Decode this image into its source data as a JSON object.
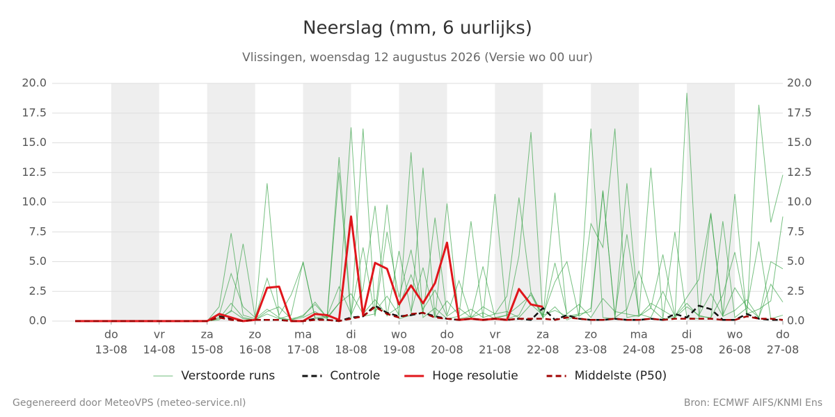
{
  "chart_data": {
    "type": "line",
    "title": "Neerslag (mm, 6 uurlijks)",
    "subtitle": "Vlissingen, woensdag 12 augustus 2026 (Versie wo 00 uur)",
    "footer_left": "Gegenereerd door MeteoVPS (meteo-service.nl)",
    "footer_right": "Bron: ECMWF AIFS/KNMI Ens",
    "x": [
      12.25,
      12.5,
      12.75,
      13,
      13.25,
      13.5,
      13.75,
      14,
      14.25,
      14.5,
      14.75,
      15,
      15.25,
      15.5,
      15.75,
      16,
      16.25,
      16.5,
      16.75,
      17,
      17.25,
      17.5,
      17.75,
      18,
      18.25,
      18.5,
      18.75,
      19,
      19.25,
      19.5,
      19.75,
      20,
      20.25,
      20.5,
      20.75,
      21,
      21.25,
      21.5,
      21.75,
      22,
      22.25,
      22.5,
      22.75,
      23,
      23.25,
      23.5,
      23.75,
      24,
      24.25,
      24.5,
      24.75,
      25,
      25.25,
      25.5,
      25.75,
      26,
      26.25,
      26.5,
      26.75,
      27
    ],
    "xlim": [
      11.77,
      27
    ],
    "xticks": [
      {
        "value": 13,
        "label": "13-08"
      },
      {
        "value": 14,
        "label": "14-08"
      },
      {
        "value": 15,
        "label": "15-08"
      },
      {
        "value": 16,
        "label": "16-08"
      },
      {
        "value": 17,
        "label": "17-08"
      },
      {
        "value": 18,
        "label": "18-08"
      },
      {
        "value": 19,
        "label": "19-08"
      },
      {
        "value": 20,
        "label": "20-08"
      },
      {
        "value": 21,
        "label": "21-08"
      },
      {
        "value": 22,
        "label": "22-08"
      },
      {
        "value": 23,
        "label": "23-08"
      },
      {
        "value": 24,
        "label": "24-08"
      },
      {
        "value": 25,
        "label": "25-08"
      },
      {
        "value": 26,
        "label": "26-08"
      },
      {
        "value": 27,
        "label": "27-08"
      }
    ],
    "xtick_weekdays": [
      "do",
      "vr",
      "za",
      "zo",
      "ma",
      "di",
      "wo",
      "do",
      "vr",
      "za",
      "zo",
      "ma",
      "di",
      "wo",
      "do"
    ],
    "ylim": [
      0,
      20
    ],
    "yticks": [
      {
        "value": 0,
        "label": "0.0"
      },
      {
        "value": 2.5,
        "label": "2.5"
      },
      {
        "value": 5,
        "label": "5.0"
      },
      {
        "value": 7.5,
        "label": "7.5"
      },
      {
        "value": 10,
        "label": "10.0"
      },
      {
        "value": 12.5,
        "label": "12.5"
      },
      {
        "value": 15,
        "label": "15.0"
      },
      {
        "value": 17.5,
        "label": "17.5"
      },
      {
        "value": 20,
        "label": "20.0"
      }
    ],
    "grid": true,
    "series": [
      {
        "name": "Verstoorde runs",
        "color": "#2e9e3e",
        "members": [
          [
            0,
            0,
            0,
            0,
            0,
            0,
            0,
            0,
            0,
            0,
            0,
            0,
            1.2,
            7.4,
            0.5,
            0.2,
            1.0,
            0.3,
            0.1,
            0.5,
            1.4,
            0.3,
            12.5,
            0.2,
            16.2,
            0.8,
            2.1,
            0.5,
            14.2,
            0.3,
            1.1,
            0.2,
            0.4,
            1.0,
            0.3,
            10.7,
            0.2,
            0.5,
            2.4,
            0.3,
            1.2,
            0.1,
            0.5,
            16.2,
            0.3,
            0.2,
            11.6,
            0.4,
            1.1,
            0.2,
            0.3,
            19.2,
            0.5,
            0.2,
            8.4,
            0.3,
            1.1,
            6.7,
            0.2,
            0.5
          ],
          [
            0,
            0,
            0,
            0,
            0,
            0,
            0,
            0,
            0,
            0,
            0,
            0,
            0.3,
            0.8,
            6.5,
            0.3,
            11.6,
            0.2,
            0.5,
            5.0,
            0.2,
            0.3,
            1.5,
            16.3,
            0.4,
            0.6,
            9.8,
            0.2,
            0.5,
            12.9,
            0.3,
            9.9,
            0.2,
            0.4,
            4.6,
            0.3,
            0.5,
            5.5,
            15.9,
            0.2,
            10.8,
            0.3,
            0.5,
            8.2,
            6.2,
            16.2,
            0.3,
            0.5,
            12.9,
            0.2,
            7.5,
            0.3,
            0.2,
            9.0,
            0.4,
            10.7,
            0.3,
            18.2,
            8.3,
            12.3
          ],
          [
            0,
            0,
            0,
            0,
            0,
            0,
            0,
            0,
            0,
            0,
            0,
            0,
            0.5,
            4.0,
            1.2,
            0.3,
            3.6,
            0.5,
            2.2,
            4.9,
            0.3,
            0.4,
            2.9,
            0.6,
            6.2,
            0.4,
            7.5,
            2.0,
            6.0,
            0.6,
            8.7,
            0.5,
            3.4,
            0.3,
            1.2,
            0.6,
            2.1,
            10.4,
            2.4,
            0.5,
            3.3,
            5.0,
            0.4,
            1.1,
            11.0,
            0.3,
            1.0,
            4.2,
            1.1,
            5.6,
            0.4,
            2.0,
            3.5,
            9.1,
            0.5,
            2.8,
            1.2,
            0.3,
            5.0,
            4.4
          ],
          [
            0,
            0,
            0,
            0,
            0,
            0,
            0,
            0,
            0,
            0,
            0,
            0,
            0.2,
            1.5,
            0.3,
            0.1,
            0.8,
            1.2,
            0.2,
            0.4,
            1.6,
            0.3,
            13.8,
            0.5,
            2.7,
            9.7,
            0.4,
            5.9,
            0.8,
            4.5,
            0.3,
            1.7,
            0.5,
            8.4,
            0.3,
            0.6,
            0.8,
            0.3,
            1.4,
            0.5,
            0.9,
            0.4,
            0.6,
            0.8,
            10.9,
            0.5,
            7.3,
            0.6,
            0.3,
            2.5,
            0.4,
            1.5,
            0.4,
            0.3,
            2.2,
            5.8,
            0.6,
            1.0,
            1.7,
            8.8
          ],
          [
            0,
            0,
            0,
            0,
            0,
            0,
            0,
            0,
            0,
            0,
            0,
            0,
            0.1,
            0.9,
            0.2,
            0.1,
            0.6,
            0.2,
            0.1,
            0.3,
            0.8,
            0.2,
            1.5,
            2.3,
            0.6,
            1.8,
            0.5,
            1.2,
            3.9,
            1.0,
            2.6,
            0.4,
            1.1,
            0.3,
            0.7,
            0.2,
            0.5,
            1.3,
            2.2,
            0.3,
            4.9,
            0.6,
            1.4,
            0.3,
            1.9,
            0.8,
            0.6,
            0.4,
            1.5,
            0.9,
            0.3,
            1.2,
            0.5,
            2.3,
            0.4,
            0.9,
            1.8,
            0.3,
            3.1,
            1.6
          ]
        ]
      },
      {
        "name": "Controle",
        "color": "#111111",
        "dashed": true,
        "values": [
          0,
          0,
          0,
          0,
          0,
          0,
          0,
          0,
          0,
          0,
          0,
          0,
          0.4,
          0.2,
          0,
          0.1,
          0.1,
          0.1,
          0,
          0,
          0.2,
          0.1,
          0,
          0.3,
          0.4,
          1.3,
          0.7,
          0.4,
          0.5,
          0.7,
          0.4,
          0.2,
          0.1,
          0.2,
          0.1,
          0.2,
          0.1,
          0.2,
          0.1,
          1.1,
          0.1,
          0.5,
          0.2,
          0.1,
          0.1,
          0.2,
          0.1,
          0.1,
          0.2,
          0.1,
          0.6,
          0.3,
          1.3,
          1.0,
          0.1,
          0.1,
          0.6,
          0.2,
          0.1,
          0.1
        ]
      },
      {
        "name": "Hoge resolutie",
        "color": "#e0161b",
        "values": [
          0,
          0,
          0,
          0,
          0,
          0,
          0,
          0,
          0,
          0,
          0,
          0,
          0.6,
          0.3,
          0,
          0.1,
          2.8,
          2.9,
          0,
          0,
          0.6,
          0.5,
          0.1,
          8.8,
          0.5,
          4.9,
          4.4,
          1.4,
          3.0,
          1.5,
          3.2,
          6.6,
          0.1,
          0.2,
          0.1,
          0.2,
          0.1,
          2.7,
          1.4,
          1.2,
          null,
          null,
          null,
          null,
          null,
          null,
          null,
          null,
          null,
          null,
          null,
          null,
          null,
          null,
          null,
          null,
          null,
          null,
          null,
          null
        ]
      },
      {
        "name": "Middelste (P50)",
        "color": "#a00000",
        "dashed": true,
        "values": [
          0,
          0,
          0,
          0,
          0,
          0,
          0,
          0,
          0,
          0,
          0,
          0,
          0.3,
          0.1,
          0,
          0.1,
          0.1,
          0.1,
          0,
          0,
          0.1,
          0.1,
          0,
          0.2,
          0.4,
          1.2,
          0.6,
          0.3,
          0.6,
          0.7,
          0.3,
          0.2,
          0.1,
          0.2,
          0.1,
          0.2,
          0.1,
          0.2,
          0.2,
          0.2,
          0.1,
          0.3,
          0.2,
          0.1,
          0.1,
          0.2,
          0.1,
          0.1,
          0.2,
          0.1,
          0.2,
          0.2,
          0.2,
          0.2,
          0.1,
          0.1,
          0.4,
          0.2,
          0.2,
          0.1
        ]
      }
    ]
  }
}
